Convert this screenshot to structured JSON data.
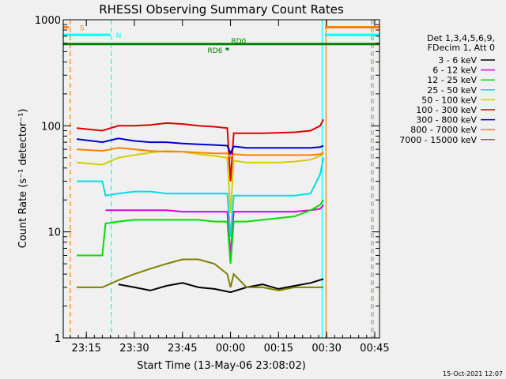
{
  "chart_data": {
    "type": "line",
    "title": "RHESSI Observing Summary Count Rates",
    "xlabel": "Start Time (13-May-06 23:08:02)",
    "ylabel": "Count Rate (s⁻¹ detector⁻¹)",
    "y_scale": "log",
    "ylim": [
      1,
      1000
    ],
    "xlim": [
      -0.2,
      98.5
    ],
    "x_ticks": [
      {
        "t": 7,
        "label": "23:15"
      },
      {
        "t": 22,
        "label": "23:30"
      },
      {
        "t": 37,
        "label": "23:45"
      },
      {
        "t": 52,
        "label": "00:00"
      },
      {
        "t": 67,
        "label": "00:15"
      },
      {
        "t": 82,
        "label": "00:30"
      },
      {
        "t": 97,
        "label": "00:45"
      }
    ],
    "y_ticks": [
      {
        "v": 1,
        "label": "1"
      },
      {
        "v": 10,
        "label": "10"
      },
      {
        "v": 100,
        "label": "100"
      },
      {
        "v": 1000,
        "label": "1000"
      }
    ],
    "legend_header": [
      "Det 1,3,4,5,6,9,",
      "FDecim 1, Att 0"
    ],
    "legend_placement": "right",
    "series": [
      {
        "name": "3 - 6 keV",
        "color": "#000000",
        "x": [
          17,
          22,
          27,
          32,
          37,
          42,
          47,
          52,
          57,
          62,
          67,
          72,
          77,
          81
        ],
        "values": [
          3.2,
          3.0,
          2.8,
          3.1,
          3.3,
          3.0,
          2.9,
          2.7,
          3.0,
          3.2,
          2.9,
          3.1,
          3.3,
          3.6
        ]
      },
      {
        "name": "6 - 12 keV",
        "color": "#e000e0",
        "x": [
          13,
          17,
          22,
          27,
          32,
          37,
          42,
          47,
          51,
          52,
          53,
          57,
          62,
          67,
          72,
          77,
          80,
          81
        ],
        "values": [
          16,
          16,
          16,
          16,
          16,
          15.5,
          15.5,
          15.5,
          15.5,
          6,
          15.5,
          15.5,
          15.5,
          15.5,
          15.5,
          16,
          16.5,
          18
        ]
      },
      {
        "name": "12 - 25 keV",
        "color": "#00e000",
        "x": [
          4,
          5,
          12,
          13,
          17,
          22,
          27,
          32,
          37,
          42,
          47,
          51,
          52,
          53,
          57,
          62,
          67,
          72,
          77,
          80,
          81
        ],
        "values": [
          6,
          6,
          6,
          12,
          12.5,
          13,
          13,
          13,
          13,
          13,
          12.5,
          12.5,
          5,
          12.5,
          12.5,
          13,
          13.5,
          14,
          16,
          18,
          20
        ]
      },
      {
        "name": "25 - 50 keV",
        "color": "#00e0e0",
        "x": [
          4,
          5,
          12,
          13,
          17,
          22,
          27,
          32,
          37,
          42,
          47,
          51,
          52,
          53,
          57,
          62,
          67,
          72,
          77,
          80,
          81
        ],
        "values": [
          30,
          30,
          30,
          22,
          23,
          24,
          24,
          23,
          23,
          23,
          23,
          23,
          9,
          22,
          22,
          22,
          22,
          22,
          23,
          35,
          50
        ]
      },
      {
        "name": "50 - 100 keV",
        "color": "#d0d000",
        "x": [
          4,
          12,
          17,
          22,
          27,
          32,
          37,
          42,
          47,
          51,
          52,
          53,
          57,
          62,
          67,
          72,
          77,
          80,
          81
        ],
        "values": [
          45,
          43,
          50,
          53,
          56,
          58,
          57,
          54,
          52,
          50,
          15,
          47,
          45,
          45,
          45,
          46,
          48,
          52,
          55
        ]
      },
      {
        "name": "100 - 300 keV",
        "color": "#e00000",
        "x": [
          4,
          12,
          17,
          22,
          27,
          32,
          37,
          42,
          47,
          51,
          52,
          53,
          57,
          62,
          67,
          72,
          77,
          80,
          81
        ],
        "values": [
          95,
          90,
          100,
          100,
          102,
          106,
          104,
          100,
          98,
          95,
          30,
          85,
          85,
          85,
          86,
          87,
          90,
          100,
          115
        ]
      },
      {
        "name": "300 - 800 keV",
        "color": "#0000d0",
        "x": [
          4,
          12,
          17,
          22,
          27,
          32,
          37,
          42,
          47,
          51,
          52,
          53,
          57,
          62,
          67,
          72,
          77,
          80,
          81
        ],
        "values": [
          75,
          70,
          76,
          72,
          70,
          70,
          68,
          67,
          66,
          65,
          55,
          64,
          62,
          62,
          62,
          62,
          62,
          63,
          65
        ]
      },
      {
        "name": "800 - 7000 keV",
        "color": "#ff8000",
        "x": [
          4,
          12,
          17,
          22,
          27,
          32,
          37,
          42,
          47,
          51,
          52,
          53,
          57,
          62,
          67,
          72,
          77,
          80,
          81
        ],
        "values": [
          60,
          58,
          62,
          60,
          58,
          57,
          57,
          56,
          55,
          55,
          50,
          54,
          53,
          53,
          53,
          53,
          53,
          54,
          56
        ]
      },
      {
        "name": "7000 - 15000 keV",
        "color": "#808000",
        "x": [
          4,
          12,
          17,
          22,
          27,
          32,
          37,
          42,
          47,
          51,
          52,
          53,
          57,
          62,
          67,
          72,
          77,
          81
        ],
        "values": [
          3,
          3,
          3.5,
          4,
          4.5,
          5,
          5.5,
          5.5,
          5,
          4,
          3,
          4,
          3,
          3,
          2.8,
          3,
          3,
          3
        ]
      }
    ],
    "flag_bars": [
      {
        "label": "S",
        "color": "#ff8000",
        "value": 850,
        "segments": [
          [
            -0.2,
            1.5
          ],
          [
            81.5,
            98.5
          ]
        ]
      },
      {
        "label": "N",
        "color": "#00ffff",
        "value": 720,
        "segments": [
          [
            -0.2,
            14.5
          ],
          [
            81.5,
            98.5
          ]
        ]
      },
      {
        "label": "RD0",
        "color": "#008000",
        "value": 590,
        "segments": [
          [
            -0.2,
            98.5
          ]
        ]
      },
      {
        "label": "RD6",
        "color": "#008000",
        "value": 530,
        "segments": [
          [
            50.5,
            51.5
          ]
        ]
      }
    ],
    "vertical_markers": [
      {
        "t": -0.2,
        "color": "#00ffff",
        "style": "solid"
      },
      {
        "t": 2.0,
        "color": "#ff8000",
        "style": "dashed"
      },
      {
        "t": 14.8,
        "color": "#00ffff",
        "style": "dashed"
      },
      {
        "t": 80.6,
        "color": "#00ffff",
        "style": "solid"
      },
      {
        "t": 81.8,
        "color": "#ff8000",
        "style": "solid"
      },
      {
        "t": 96.0,
        "color": "#ff8000",
        "style": "dashed"
      },
      {
        "t": 96.6,
        "color": "#00ffff",
        "style": "dashed"
      }
    ],
    "grid": false
  },
  "footer": {
    "timestamp": "15-Oct-2021 12:07"
  }
}
